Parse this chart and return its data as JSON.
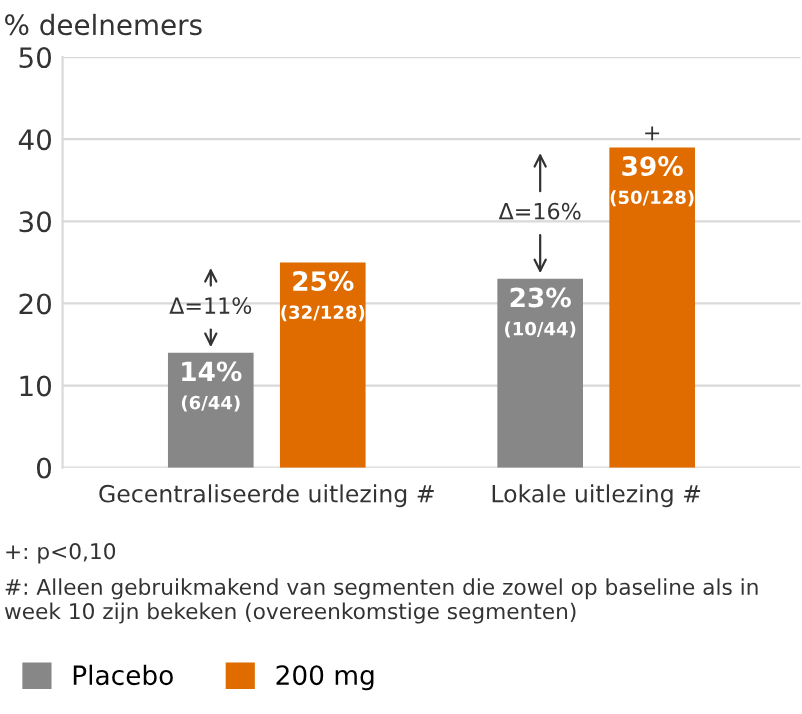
{
  "chart_data": {
    "type": "bar",
    "ylabel": "% deelnemers",
    "categories": [
      "Gecentraliseerde uitlezing #",
      "Lokale uitlezing #"
    ],
    "series": [
      {
        "name": "Placebo",
        "color": "#878787",
        "values": [
          14,
          23
        ],
        "value_labels": [
          "14%\n(6/44)",
          "23%\n(10/44)"
        ]
      },
      {
        "name": "200 mg",
        "color": "#e06c00",
        "values": [
          25,
          39
        ],
        "value_labels": [
          "25%\n(32/128)",
          "39%\n(50/128)"
        ]
      }
    ],
    "ylim": [
      0,
      50
    ],
    "yticks": [
      0,
      10,
      20,
      30,
      40,
      50
    ],
    "grid": "y",
    "legend": "bottom",
    "annotations": [
      "Δ=11%",
      "Δ=16%",
      "+",
      "+: p<0,10",
      "#: Alleen gebruikmakend van segmenten die zowel op baseline als in week 10 zijn bekeken (overeenkomstige segmenten)"
    ]
  }
}
